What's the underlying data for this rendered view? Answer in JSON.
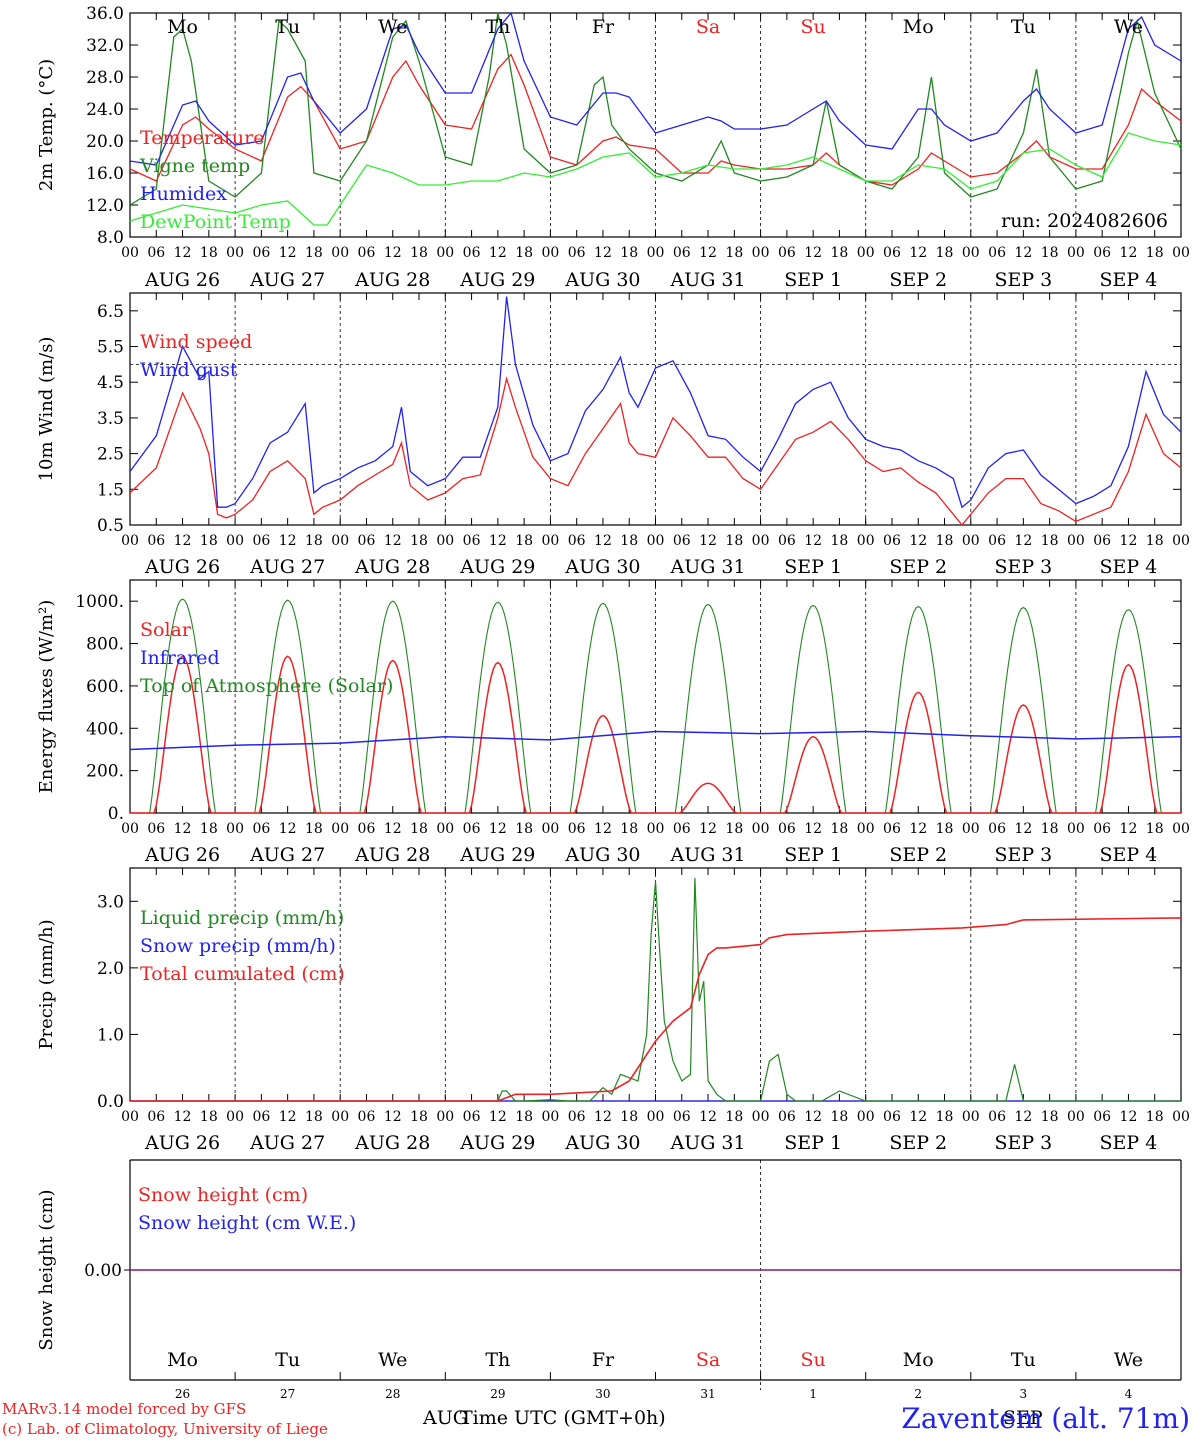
{
  "footer": {
    "model_credit": "MARv3.14 model forced by GFS",
    "lab_credit": "(c) Lab. of Climatology, University of Liege",
    "station": "Zaventem (alt. 71m)",
    "time_label": "Time UTC (GMT+0h)",
    "month_left": "AUG",
    "month_right": "SEP",
    "color_station": "#2222ee"
  },
  "days": [
    {
      "abbr": "Mo",
      "date": "AUG 26",
      "num": "26",
      "weekend": false
    },
    {
      "abbr": "Tu",
      "date": "AUG 27",
      "num": "27",
      "weekend": false
    },
    {
      "abbr": "We",
      "date": "AUG 28",
      "num": "28",
      "weekend": false
    },
    {
      "abbr": "Th",
      "date": "AUG 29",
      "num": "29",
      "weekend": false
    },
    {
      "abbr": "Fr",
      "date": "AUG 30",
      "num": "30",
      "weekend": false
    },
    {
      "abbr": "Sa",
      "date": "AUG 31",
      "num": "31",
      "weekend": true
    },
    {
      "abbr": "Su",
      "date": "SEP  1",
      "num": "1",
      "weekend": true
    },
    {
      "abbr": "Mo",
      "date": "SEP  2",
      "num": "2",
      "weekend": false
    },
    {
      "abbr": "Tu",
      "date": "SEP  3",
      "num": "3",
      "weekend": false
    },
    {
      "abbr": "We",
      "date": "SEP  4",
      "num": "4",
      "weekend": false
    }
  ],
  "hour_ticks": [
    "00",
    "06",
    "12",
    "18"
  ],
  "chart_data": [
    {
      "type": "line",
      "ylabel": "2m Temp. (°C)",
      "run_label": "run: 2024082606",
      "ylim": [
        8,
        36
      ],
      "yticks": [
        "8.0",
        "12.0",
        "16.0",
        "20.0",
        "24.0",
        "28.0",
        "32.0",
        "36.0"
      ],
      "x_unit": "hours since AUG 26 00 UTC",
      "series": [
        {
          "name": "Temperature",
          "color": "#ee2222",
          "x": [
            0,
            6,
            12,
            15,
            18,
            24,
            30,
            36,
            39,
            42,
            48,
            54,
            60,
            63,
            66,
            72,
            78,
            84,
            87,
            90,
            96,
            102,
            108,
            111,
            114,
            120,
            126,
            132,
            135,
            138,
            144,
            150,
            156,
            159,
            162,
            168,
            174,
            180,
            183,
            186,
            192,
            198,
            204,
            207,
            210,
            216,
            222,
            228,
            231,
            234,
            240
          ],
          "y": [
            16.5,
            15,
            22,
            23,
            21.5,
            19,
            17.5,
            25.5,
            26.8,
            25,
            19,
            20,
            28,
            30,
            27,
            22,
            21.5,
            29,
            30.8,
            27,
            18,
            17,
            20,
            20.5,
            19.5,
            19,
            16,
            16,
            17.5,
            17,
            16.5,
            16.5,
            17,
            18.5,
            17,
            15,
            14.5,
            16.5,
            18.5,
            17.5,
            15.5,
            16,
            18.5,
            20,
            18,
            16.5,
            16.5,
            22,
            26.5,
            25,
            22.5
          ]
        },
        {
          "name": "Vigne temp",
          "color": "#228822",
          "x": [
            0,
            6,
            10,
            12,
            14,
            18,
            24,
            30,
            34,
            36,
            40,
            42,
            48,
            54,
            60,
            63,
            66,
            72,
            78,
            82,
            84,
            86,
            90,
            96,
            102,
            106,
            108,
            110,
            114,
            120,
            126,
            132,
            135,
            138,
            144,
            150,
            156,
            159,
            162,
            168,
            174,
            180,
            183,
            186,
            192,
            198,
            204,
            207,
            210,
            216,
            222,
            228,
            230,
            234,
            240
          ],
          "y": [
            12,
            14,
            33,
            34,
            30,
            15,
            13,
            16,
            35,
            34,
            30,
            16,
            15,
            20,
            33,
            35,
            30,
            18,
            17,
            28,
            36,
            32,
            19,
            16,
            17,
            27,
            28,
            22,
            19,
            16,
            15,
            17,
            20,
            16,
            15,
            15.5,
            17,
            25,
            17,
            15,
            14,
            18,
            28,
            16,
            13,
            14,
            21,
            29,
            18,
            14,
            15,
            31,
            35,
            26,
            19
          ]
        },
        {
          "name": "Humidex",
          "color": "#2222ee",
          "x": [
            0,
            6,
            12,
            15,
            18,
            24,
            30,
            36,
            39,
            42,
            48,
            54,
            60,
            63,
            66,
            72,
            78,
            84,
            87,
            90,
            96,
            102,
            108,
            111,
            114,
            120,
            126,
            132,
            135,
            138,
            144,
            150,
            156,
            159,
            162,
            168,
            174,
            180,
            183,
            186,
            192,
            198,
            204,
            207,
            210,
            216,
            222,
            228,
            231,
            234,
            240
          ],
          "y": [
            17.5,
            17,
            24.5,
            25,
            22.5,
            19.5,
            20,
            28,
            28.5,
            25,
            21,
            24,
            34,
            34.5,
            31,
            26,
            26,
            34,
            36,
            30,
            23,
            22,
            26,
            26,
            25.5,
            21,
            22,
            23,
            22.5,
            21.5,
            21.5,
            22,
            24,
            25,
            22.5,
            19.5,
            19,
            24,
            24,
            22,
            20,
            21,
            25,
            26.5,
            24,
            21,
            22,
            34,
            35.5,
            32,
            30
          ]
        },
        {
          "name": "DewPoint Temp",
          "color": "#33ee33",
          "x": [
            0,
            6,
            12,
            18,
            24,
            30,
            36,
            42,
            45,
            48,
            54,
            60,
            66,
            72,
            78,
            84,
            90,
            96,
            102,
            108,
            114,
            120,
            126,
            132,
            138,
            144,
            150,
            156,
            162,
            168,
            174,
            180,
            186,
            192,
            198,
            204,
            210,
            216,
            222,
            228,
            234,
            240
          ],
          "y": [
            10,
            11,
            12,
            11.5,
            11,
            12,
            12.5,
            9.5,
            9.5,
            12,
            17,
            16,
            14.5,
            14.5,
            15,
            15,
            16,
            15.5,
            16.5,
            18,
            18.5,
            15.5,
            16,
            17,
            16.5,
            16.5,
            17,
            18,
            16.5,
            15,
            15,
            17,
            16.5,
            14,
            15,
            18.5,
            19,
            17,
            15.5,
            21,
            20,
            19.5
          ]
        }
      ],
      "reference_lines": []
    },
    {
      "type": "line",
      "ylabel": "10m Wind (m/s)",
      "ylim": [
        0.5,
        7.0
      ],
      "yticks": [
        "0.5",
        "1.5",
        "2.5",
        "3.5",
        "4.5",
        "5.5",
        "6.5"
      ],
      "reference_lines": [
        5
      ],
      "series": [
        {
          "name": "Wind speed",
          "color": "#ee2222",
          "x": [
            0,
            6,
            12,
            16,
            18,
            20,
            22,
            24,
            28,
            32,
            36,
            40,
            42,
            44,
            48,
            52,
            56,
            60,
            62,
            64,
            68,
            72,
            76,
            80,
            84,
            86,
            88,
            92,
            96,
            100,
            104,
            108,
            112,
            114,
            116,
            120,
            124,
            128,
            132,
            136,
            140,
            144,
            148,
            152,
            156,
            160,
            164,
            168,
            172,
            176,
            180,
            184,
            188,
            190,
            192,
            196,
            200,
            204,
            208,
            212,
            216,
            220,
            224,
            228,
            232,
            236,
            240
          ],
          "y": [
            1.4,
            2.1,
            4.2,
            3.2,
            2.5,
            0.8,
            0.7,
            0.8,
            1.2,
            2,
            2.3,
            1.8,
            0.8,
            1,
            1.2,
            1.6,
            1.9,
            2.2,
            2.8,
            1.6,
            1.2,
            1.4,
            1.8,
            1.9,
            3.5,
            4.6,
            3.8,
            2.4,
            1.8,
            1.6,
            2.5,
            3.2,
            3.9,
            2.8,
            2.5,
            2.4,
            3.5,
            3,
            2.4,
            2.4,
            1.8,
            1.5,
            2.2,
            2.9,
            3.1,
            3.4,
            2.9,
            2.3,
            2.0,
            2.1,
            1.7,
            1.4,
            0.8,
            0.5,
            0.8,
            1.4,
            1.8,
            1.8,
            1.1,
            0.9,
            0.6,
            0.8,
            1,
            2,
            3.6,
            2.5,
            2.1
          ]
        },
        {
          "name": "Wind gust",
          "color": "#2222ee",
          "x": [
            0,
            6,
            12,
            16,
            18,
            20,
            22,
            24,
            28,
            32,
            36,
            40,
            42,
            44,
            48,
            52,
            56,
            60,
            62,
            64,
            68,
            72,
            76,
            80,
            84,
            86,
            88,
            92,
            96,
            100,
            104,
            108,
            112,
            114,
            116,
            120,
            124,
            128,
            132,
            136,
            140,
            144,
            148,
            152,
            156,
            160,
            164,
            168,
            172,
            176,
            180,
            184,
            188,
            190,
            192,
            196,
            200,
            204,
            208,
            212,
            216,
            220,
            224,
            228,
            232,
            236,
            240
          ],
          "y": [
            2,
            3,
            5.5,
            4.6,
            4.8,
            1,
            1,
            1.1,
            1.8,
            2.8,
            3.1,
            3.9,
            1.4,
            1.6,
            1.8,
            2.1,
            2.3,
            2.7,
            3.8,
            2.0,
            1.6,
            1.8,
            2.4,
            2.4,
            3.8,
            6.9,
            5.0,
            3.3,
            2.3,
            2.5,
            3.7,
            4.3,
            5.2,
            4.2,
            3.8,
            4.9,
            5.1,
            4.2,
            3.0,
            2.9,
            2.4,
            2.0,
            2.9,
            3.9,
            4.3,
            4.5,
            3.5,
            2.9,
            2.7,
            2.6,
            2.3,
            2.1,
            1.8,
            1.0,
            1.2,
            2.1,
            2.5,
            2.6,
            1.9,
            1.5,
            1.1,
            1.3,
            1.6,
            2.7,
            4.8,
            3.6,
            3.1
          ]
        }
      ]
    },
    {
      "type": "area",
      "ylabel": "Energy fluxes (W/m²)",
      "ylim": [
        0,
        1100
      ],
      "yticks": [
        "0.",
        "200.",
        "400.",
        "600.",
        "800.",
        "1000."
      ],
      "reference_lines": [],
      "series": [
        {
          "name": "Solar",
          "color": "#ee2222",
          "daily_peaks": [
            740,
            740,
            720,
            710,
            460,
            140,
            360,
            570,
            510,
            700
          ]
        },
        {
          "name": "Infrared",
          "color": "#2222ee",
          "x": [
            0,
            24,
            48,
            72,
            96,
            120,
            144,
            168,
            192,
            216,
            240
          ],
          "y": [
            300,
            320,
            330,
            360,
            345,
            385,
            375,
            385,
            365,
            350,
            360
          ]
        },
        {
          "name": "Top of Atmosphere (Solar)",
          "color": "#228822",
          "daily_peaks": [
            1010,
            1005,
            1000,
            995,
            990,
            985,
            980,
            975,
            970,
            960
          ]
        }
      ]
    },
    {
      "type": "line",
      "ylabel": "Precip (mm/h)",
      "ylim": [
        0,
        3.5
      ],
      "yticks": [
        "0.0",
        "1.0",
        "2.0",
        "3.0"
      ],
      "reference_lines": [],
      "series": [
        {
          "name": "Liquid precip (mm/h)",
          "color": "#228822",
          "x": [
            0,
            84,
            85,
            86,
            88,
            90,
            96,
            100,
            105,
            108,
            110,
            112,
            116,
            118,
            119,
            120,
            121,
            122,
            124,
            126,
            128,
            129,
            130,
            131,
            132,
            134,
            136,
            144,
            146,
            148,
            150,
            152,
            154,
            156,
            158,
            162,
            168,
            200,
            202,
            204,
            240
          ],
          "y": [
            0,
            0,
            0.15,
            0.15,
            0,
            0,
            0.02,
            0,
            0,
            0.2,
            0.1,
            0.4,
            0.3,
            1,
            2.5,
            3.3,
            2.2,
            1.2,
            0.6,
            0.3,
            0.4,
            3.35,
            1.5,
            1.8,
            0.3,
            0.1,
            0,
            0,
            0.6,
            0.7,
            0.1,
            0,
            0,
            0,
            0,
            0.15,
            0,
            0,
            0.55,
            0,
            0
          ]
        },
        {
          "name": "Snow precip (mm/h)",
          "color": "#2222ee",
          "x": [
            0,
            240
          ],
          "y": [
            0,
            0
          ]
        },
        {
          "name": "Total cumulated (cm)",
          "color": "#ee2222",
          "x": [
            0,
            84,
            88,
            96,
            110,
            114,
            117,
            120,
            124,
            128,
            130,
            132,
            134,
            136,
            144,
            146,
            150,
            168,
            190,
            200,
            204,
            240
          ],
          "y": [
            0,
            0,
            0.1,
            0.1,
            0.15,
            0.3,
            0.6,
            0.9,
            1.2,
            1.4,
            1.9,
            2.2,
            2.3,
            2.3,
            2.35,
            2.45,
            2.5,
            2.55,
            2.6,
            2.65,
            2.72,
            2.75
          ]
        }
      ]
    },
    {
      "type": "line",
      "ylabel": "Snow height (cm)",
      "ytick_label": "0.00",
      "reference_lines": [],
      "series": [
        {
          "name": "Snow height (cm)",
          "color": "#ee2222",
          "value": 0
        },
        {
          "name": "Snow height (cm W.E.)",
          "color": "#2222ee",
          "value": 0
        }
      ]
    }
  ]
}
